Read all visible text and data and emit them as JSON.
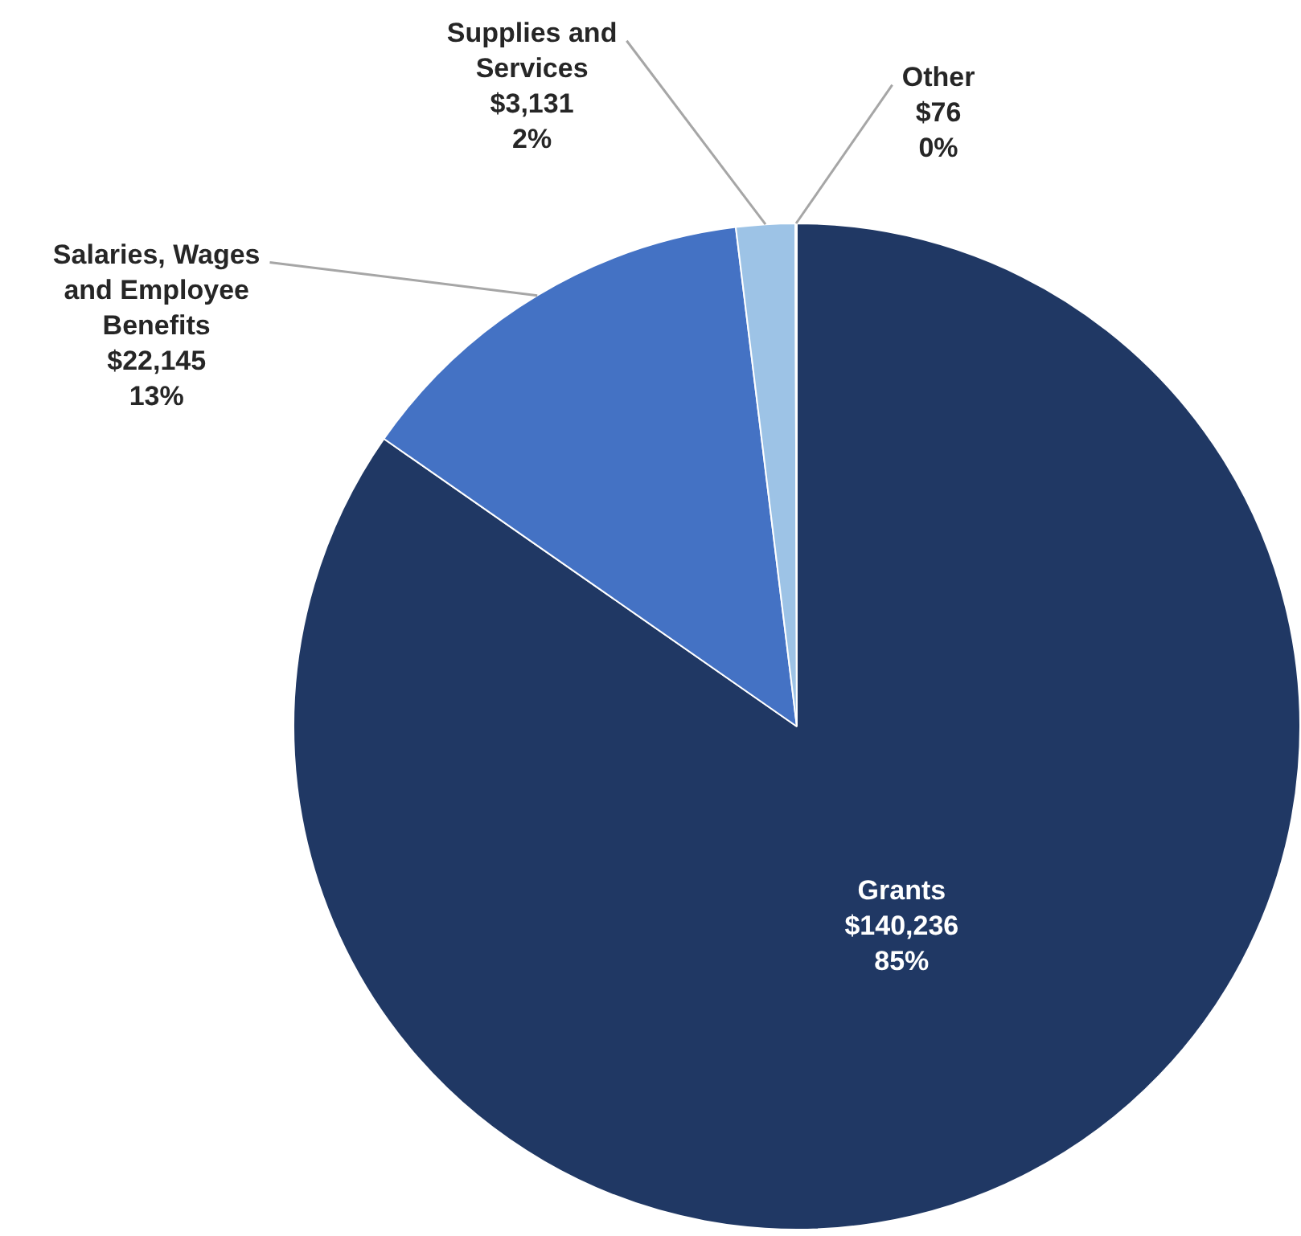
{
  "chart_data": {
    "type": "pie",
    "categories": [
      "Grants",
      "Salaries, Wages and Employee Benefits",
      "Supplies and Services",
      "Other"
    ],
    "values": [
      140236,
      22145,
      3131,
      76
    ],
    "colors": [
      "#203864",
      "#4472c4",
      "#9dc3e6",
      "#2e5e3a"
    ],
    "value_labels": [
      "$140,236\n85%",
      "$22,145\n13%",
      "$3,131\n2%",
      "$76\n0%"
    ],
    "legend": false
  }
}
